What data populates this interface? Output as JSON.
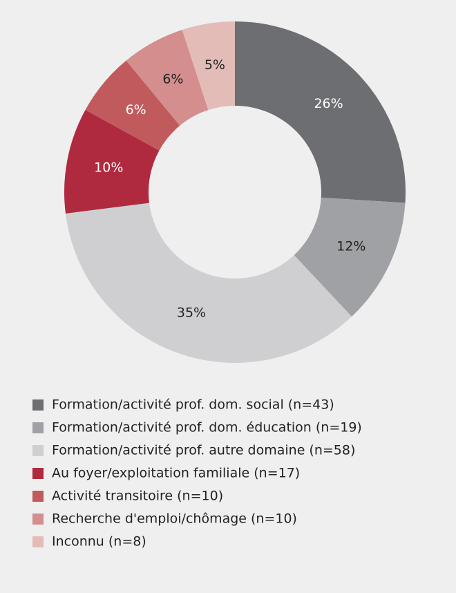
{
  "chart_data": {
    "type": "donut",
    "categories": [
      "Formation/activité prof. dom. social (n=43)",
      "Formation/activité prof. dom. éducation (n=19)",
      "Formation/activité prof. autre domaine (n=58)",
      "Au foyer/exploitation familiale (n=17)",
      "Activité transitoire (n=10)",
      "Recherche d'emploi/chômage (n=10)",
      "Inconnu (n=8)"
    ],
    "values": [
      26,
      12,
      35,
      10,
      6,
      6,
      5
    ],
    "value_labels": [
      "26%",
      "12%",
      "35%",
      "10%",
      "6%",
      "6%",
      "5%"
    ],
    "colors": [
      "#6d6e71",
      "#a0a1a4",
      "#cfcfd1",
      "#b02a3f",
      "#c05a5c",
      "#d48e8e",
      "#e3bcb8"
    ],
    "legend": "bottom"
  }
}
